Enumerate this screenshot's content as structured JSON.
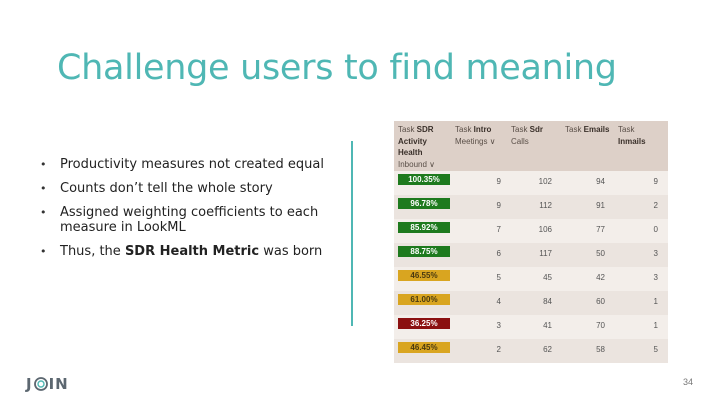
{
  "slide": {
    "title": "Challenge users to find meaning",
    "bullets": [
      {
        "text": "Productivity measures not created equal"
      },
      {
        "text": "Counts don’t tell the whole story"
      },
      {
        "text": "Assigned weighting coefficients to each measure in LookML"
      },
      {
        "text_before": "Thus, the ",
        "bold": "SDR Health Metric",
        "text_after": " was born"
      }
    ],
    "page_number": "34"
  },
  "logo": {
    "left": "J",
    "right": "IN"
  },
  "table": {
    "headers": [
      {
        "prefix": "Task ",
        "bold": "SDR Activity Health",
        "suffix": " Inbound ∨"
      },
      {
        "prefix": "Task ",
        "bold": "Intro",
        "suffix": " Meetings ∨"
      },
      {
        "prefix": "Task ",
        "bold": "Sdr",
        "suffix": " Calls"
      },
      {
        "prefix": "Task ",
        "bold": "Emails",
        "suffix": ""
      },
      {
        "prefix": "Task ",
        "bold": "Inmails",
        "suffix": ""
      }
    ],
    "rows": [
      {
        "health": "100.35%",
        "color": "#1e7a1e",
        "text_color": "#ffffff",
        "meetings": "9",
        "calls": "102",
        "emails": "94",
        "inmails": "9"
      },
      {
        "health": "96.78%",
        "color": "#1e7a1e",
        "text_color": "#ffffff",
        "meetings": "9",
        "calls": "112",
        "emails": "91",
        "inmails": "2"
      },
      {
        "health": "85.92%",
        "color": "#1e7a1e",
        "text_color": "#ffffff",
        "meetings": "7",
        "calls": "106",
        "emails": "77",
        "inmails": "0"
      },
      {
        "health": "88.75%",
        "color": "#1e7a1e",
        "text_color": "#ffffff",
        "meetings": "6",
        "calls": "117",
        "emails": "50",
        "inmails": "3"
      },
      {
        "health": "46.55%",
        "color": "#d9a520",
        "text_color": "#4a3a10",
        "meetings": "5",
        "calls": "45",
        "emails": "42",
        "inmails": "3"
      },
      {
        "health": "61.00%",
        "color": "#d9a520",
        "text_color": "#4a3a10",
        "meetings": "4",
        "calls": "84",
        "emails": "60",
        "inmails": "1"
      },
      {
        "health": "36.25%",
        "color": "#8b1010",
        "text_color": "#ffffff",
        "meetings": "3",
        "calls": "41",
        "emails": "70",
        "inmails": "1"
      },
      {
        "health": "46.45%",
        "color": "#d9a520",
        "text_color": "#4a3a10",
        "meetings": "2",
        "calls": "62",
        "emails": "58",
        "inmails": "5"
      }
    ]
  }
}
